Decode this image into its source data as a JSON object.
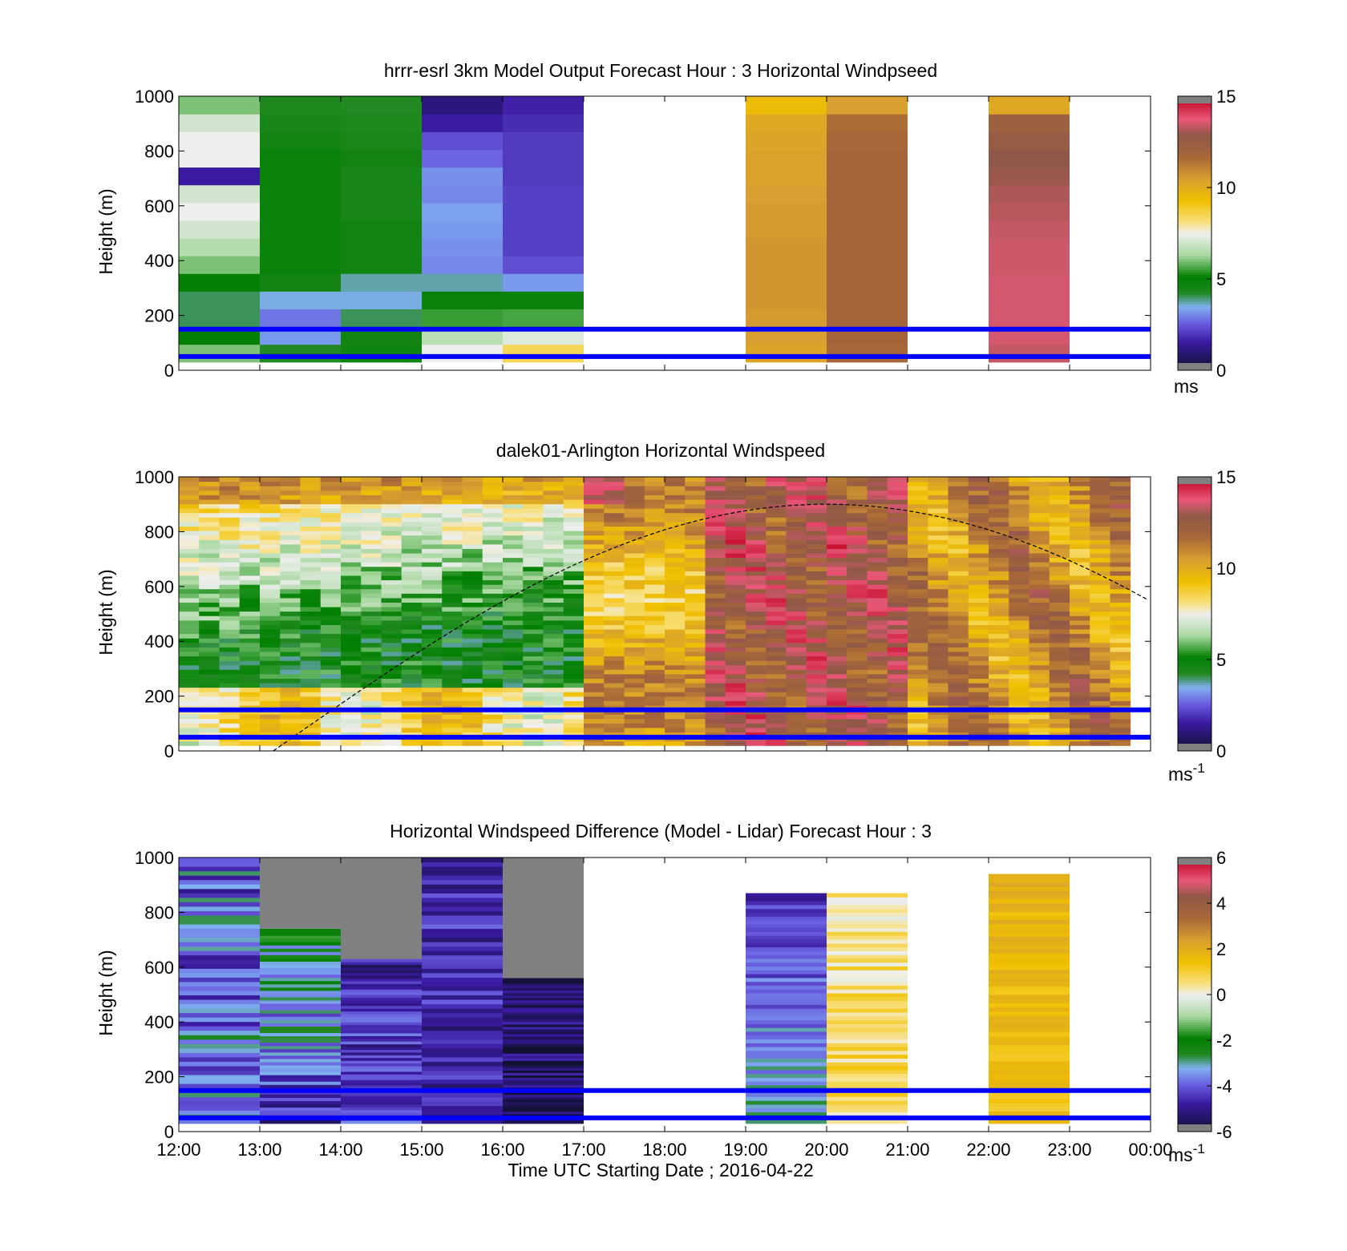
{
  "chart_data": [
    {
      "type": "heatmap",
      "title": "hrrr-esrl 3km Model Output   Forecast Hour : 3 Horizontal Windpseed",
      "ylabel": "Height (m)",
      "xlabel": "",
      "ylim": [
        0,
        1000
      ],
      "yticks": [
        0,
        200,
        400,
        600,
        800,
        1000
      ],
      "xlim": [
        "12:00",
        "00:00"
      ],
      "colorbar": {
        "min": 0,
        "max": 15,
        "ticks": [
          0,
          5,
          10,
          15
        ],
        "unit_base": "ms",
        "unit_sup": "",
        "scale": "wind"
      },
      "reference_lines_m": [
        150,
        50
      ],
      "reference_line_color": "#0000ff",
      "columns": [
        {
          "start": "12:00",
          "end": "13:00",
          "bottom": 30,
          "top": 1000,
          "levels": [
            6,
            5,
            4,
            4,
            5,
            6,
            6.5,
            7,
            7.5,
            7,
            1.5,
            7.5,
            7.5,
            7,
            6
          ]
        },
        {
          "start": "13:00",
          "end": "14:00",
          "bottom": 30,
          "top": 1000,
          "levels": [
            4.2,
            3.2,
            2.8,
            3.5,
            4.6,
            4.8,
            4.8,
            4.8,
            4.8,
            4.8,
            4.8,
            4.8,
            4.6,
            4.5,
            4.3
          ]
        },
        {
          "start": "14:00",
          "end": "15:00",
          "bottom": 30,
          "top": 1000,
          "levels": [
            4.7,
            4.6,
            4.0,
            3.5,
            3.7,
            4.6,
            4.6,
            4.6,
            4.5,
            4.5,
            4.5,
            4.6,
            4.4,
            4.3,
            4.2
          ]
        },
        {
          "start": "15:00",
          "end": "16:00",
          "bottom": 30,
          "top": 1000,
          "levels": [
            7.5,
            6.6,
            5.5,
            4.8,
            3.7,
            3.0,
            3.1,
            3.2,
            3.3,
            3.0,
            3.1,
            2.6,
            2.3,
            1.5,
            1.0
          ]
        },
        {
          "start": "16:00",
          "end": "17:00",
          "bottom": 30,
          "top": 1000,
          "levels": [
            8.5,
            7.2,
            5.6,
            4.8,
            3.2,
            2.3,
            2.1,
            2.1,
            2.1,
            2.1,
            2.0,
            2.0,
            2.0,
            1.8,
            1.6
          ]
        },
        {
          "start": "19:00",
          "end": "20:00",
          "bottom": 30,
          "top": 1000,
          "levels": [
            10.3,
            10.5,
            10.6,
            10.7,
            10.7,
            10.7,
            10.7,
            10.6,
            10.6,
            10.5,
            10.4,
            10.4,
            10.3,
            10.2,
            9.5
          ]
        },
        {
          "start": "20:00",
          "end": "21:00",
          "bottom": 30,
          "top": 1000,
          "levels": [
            11.8,
            11.9,
            11.9,
            11.9,
            11.9,
            11.9,
            11.9,
            11.9,
            11.9,
            11.9,
            11.9,
            11.9,
            11.8,
            11.6,
            10.5
          ]
        },
        {
          "start": "22:00",
          "end": "23:00",
          "bottom": 30,
          "top": 1000,
          "levels": [
            13.4,
            13.6,
            13.6,
            13.6,
            13.6,
            13.5,
            13.5,
            13.4,
            13.3,
            13.2,
            13.0,
            12.9,
            12.6,
            12.2,
            10.2
          ]
        }
      ]
    },
    {
      "type": "heatmap",
      "title": "dalek01-Arlington  Horizontal Windspeed",
      "ylabel": "Height (m)",
      "xlabel": "",
      "ylim": [
        0,
        1000
      ],
      "yticks": [
        0,
        200,
        400,
        600,
        800,
        1000
      ],
      "xlim": [
        "12:00",
        "00:00"
      ],
      "colorbar": {
        "min": 0,
        "max": 15,
        "ticks": [
          0,
          5,
          10,
          15
        ],
        "unit_base": "ms",
        "unit_sup": "-1",
        "scale": "wind"
      },
      "reference_lines_m": [
        150,
        50
      ],
      "reference_line_color": "#0000ff",
      "profiles_per_hour": 4,
      "profile_bins": 60,
      "field": "lidar_windspeed",
      "sun_curve": {
        "start": "13:10",
        "peak_time": "20:00",
        "peak_m": 900,
        "end_m": 540
      }
    },
    {
      "type": "heatmap",
      "title": "Horizontal Windspeed Difference (Model - Lidar) Forecast Hour : 3",
      "ylabel": "Height (m)",
      "xlabel": "Time UTC  Starting Date ; 2016-04-22",
      "ylim": [
        0,
        1000
      ],
      "yticks": [
        0,
        200,
        400,
        600,
        800,
        1000
      ],
      "xlim": [
        "12:00",
        "00:00"
      ],
      "xticks": [
        "12:00",
        "13:00",
        "14:00",
        "15:00",
        "16:00",
        "17:00",
        "18:00",
        "19:00",
        "20:00",
        "21:00",
        "22:00",
        "23:00",
        "00:00"
      ],
      "colorbar": {
        "min": -6,
        "max": 6,
        "ticks": [
          -6,
          -4,
          -2,
          0,
          2,
          4,
          6
        ],
        "unit_base": "ms",
        "unit_sup": "-1",
        "scale": "diff"
      },
      "reference_lines_m": [
        150,
        50
      ],
      "reference_line_color": "#0000ff",
      "columns": [
        {
          "start": "12:00",
          "end": "13:00",
          "bottom": 30,
          "top": 1000,
          "base": -3.5,
          "top_value": -4.0,
          "jitter": 1.2,
          "missing_above": null
        },
        {
          "start": "13:00",
          "end": "14:00",
          "bottom": 30,
          "top": 740,
          "base": -4.5,
          "top_value": -2.5,
          "jitter": 1.0,
          "missing_above": 740
        },
        {
          "start": "14:00",
          "end": "15:00",
          "bottom": 30,
          "top": 630,
          "base": -4.0,
          "top_value": -4.8,
          "jitter": 0.9,
          "missing_above": 630
        },
        {
          "start": "15:00",
          "end": "16:00",
          "bottom": 30,
          "top": 1000,
          "base": -4.8,
          "top_value": -4.6,
          "jitter": 0.8,
          "missing_above": null
        },
        {
          "start": "16:00",
          "end": "17:00",
          "bottom": 30,
          "top": 560,
          "base": -5.2,
          "top_value": -5.5,
          "jitter": 0.8,
          "missing_above": 560
        },
        {
          "start": "19:00",
          "end": "20:00",
          "bottom": 30,
          "top": 870,
          "base": -3.0,
          "top_value": -4.5,
          "jitter": 0.6,
          "missing_above": null
        },
        {
          "start": "20:00",
          "end": "21:00",
          "bottom": 30,
          "top": 870,
          "base": 0.8,
          "top_value": 0.5,
          "jitter": 0.7,
          "missing_above": null
        },
        {
          "start": "22:00",
          "end": "23:00",
          "bottom": 30,
          "top": 940,
          "base": 1.4,
          "top_value": 1.8,
          "jitter": 0.4,
          "missing_above": null
        }
      ]
    }
  ]
}
